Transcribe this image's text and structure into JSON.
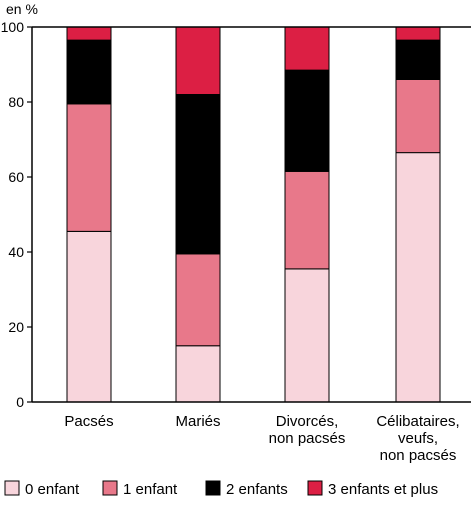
{
  "chart_data": {
    "type": "bar",
    "stacked": true,
    "orientation": "vertical",
    "ylabel": "en %",
    "ylim": [
      0,
      100
    ],
    "yticks": [
      0,
      20,
      40,
      60,
      80,
      100
    ],
    "grid": false,
    "legend_position": "bottom",
    "categories": [
      [
        "Pacsés"
      ],
      [
        "Mariés"
      ],
      [
        "Divorcés,",
        "non pacsés"
      ],
      [
        "Célibataires,",
        "veufs,",
        "non pacsés"
      ]
    ],
    "series": [
      {
        "name": "0 enfant",
        "color": "#f8d5dc",
        "values": [
          45.5,
          15,
          35.5,
          66.5
        ]
      },
      {
        "name": "1 enfant",
        "color": "#e8788a",
        "values": [
          34,
          24.5,
          26,
          19.5
        ]
      },
      {
        "name": "2 enfants",
        "color": "#000000",
        "values": [
          17,
          42.5,
          27,
          10.5
        ]
      },
      {
        "name": "3 enfants et plus",
        "color": "#dc1f44",
        "values": [
          3.5,
          18,
          11.5,
          3.5
        ]
      }
    ]
  }
}
